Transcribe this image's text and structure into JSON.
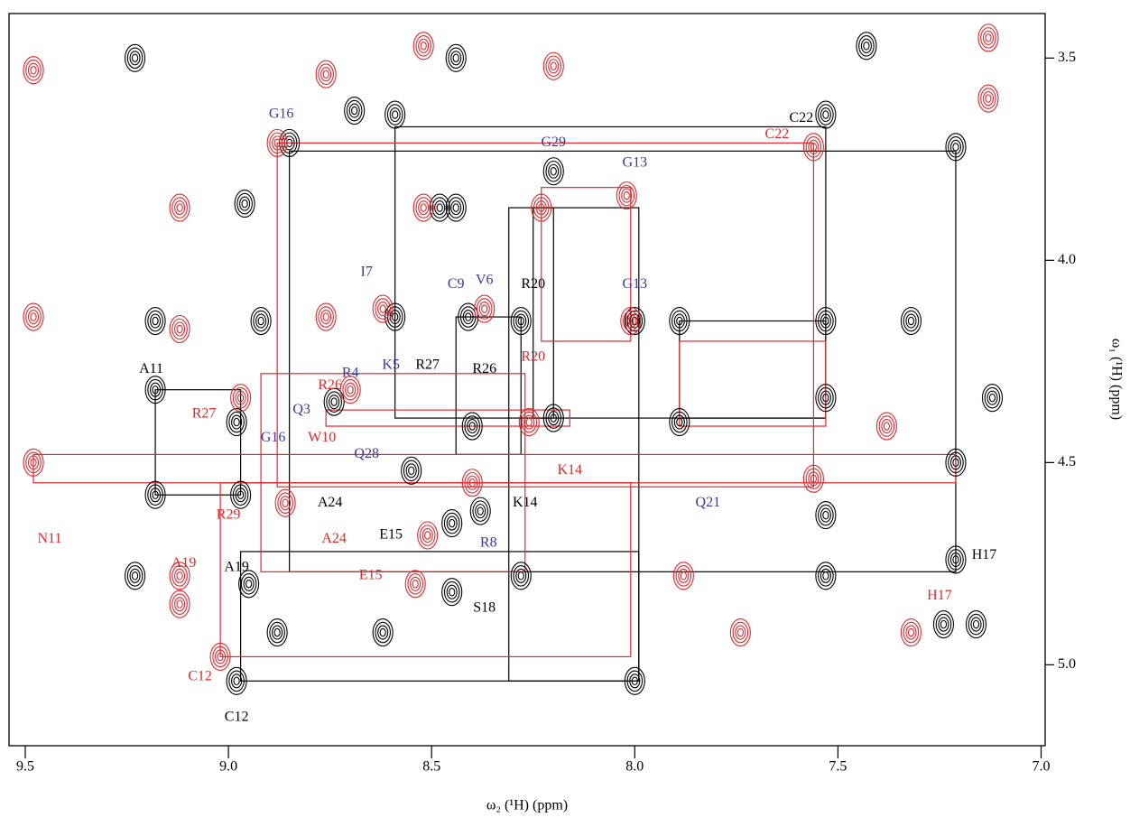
{
  "chart_data": {
    "type": "contour",
    "x_label": "ω₂ (¹H) (ppm)",
    "y_label": "ω₁ (¹H) (ppm)",
    "xlim": [
      9.54,
      6.99
    ],
    "ylim": [
      3.39,
      5.2
    ],
    "xticks": [
      9.5,
      {
        "value": 9,
        "label": "9.0"
      },
      8.5,
      {
        "value": 8,
        "label": "8.0"
      },
      7.5,
      {
        "value": 7,
        "label": "7.0"
      }
    ],
    "yticks": [
      3.5,
      {
        "value": 4,
        "label": "4.0"
      },
      4.5,
      {
        "value": 5,
        "label": "5.0"
      }
    ],
    "series": [
      {
        "color": "#000000",
        "x": [
          9.23,
          9.18,
          9.18,
          9.18,
          9.23,
          8.98,
          8.97,
          8.98,
          8.92,
          8.96,
          8.85,
          8.95,
          8.69,
          8.59,
          8.44,
          8.44,
          8.41,
          8.59,
          8.4,
          8.38,
          8.45,
          8.45,
          8.28,
          8.2,
          8.2,
          8.0,
          8.0,
          7.89,
          7.89,
          7.53,
          7.53,
          7.53,
          7.53,
          7.53,
          7.21,
          7.21,
          7.21,
          7.24,
          7.16,
          7.43,
          7.12,
          7.32,
          8.48,
          8.28,
          8.62,
          8.74,
          8.55,
          8.88
        ],
        "values": [
          3.5,
          4.15,
          4.32,
          4.58,
          4.78,
          4.4,
          4.58,
          5.04,
          4.15,
          3.86,
          3.71,
          4.8,
          3.63,
          3.64,
          3.5,
          3.87,
          4.14,
          4.14,
          4.41,
          4.62,
          4.65,
          4.82,
          4.15,
          3.78,
          4.39,
          4.15,
          5.04,
          4.15,
          4.4,
          3.64,
          4.15,
          4.34,
          4.63,
          4.78,
          3.72,
          4.5,
          4.74,
          4.9,
          4.9,
          3.47,
          4.34,
          4.15,
          3.87,
          4.78,
          4.92,
          4.35,
          4.52,
          4.92
        ]
      },
      {
        "color": "#e8262a",
        "x": [
          9.48,
          9.48,
          9.48,
          9.12,
          9.12,
          9.12,
          8.97,
          8.88,
          8.76,
          8.76,
          8.7,
          8.52,
          8.52,
          8.62,
          8.37,
          8.51,
          8.54,
          8.23,
          8.26,
          8.02,
          8.01,
          7.88,
          7.74,
          7.56,
          7.56,
          7.32,
          7.13,
          7.38,
          9.02,
          8.86,
          8.4,
          7.13,
          9.12,
          8.2
        ],
        "values": [
          3.53,
          4.14,
          4.5,
          4.17,
          4.78,
          3.87,
          4.34,
          3.71,
          3.54,
          4.14,
          4.32,
          3.47,
          3.87,
          4.12,
          4.12,
          4.68,
          4.8,
          3.87,
          4.4,
          3.84,
          4.15,
          4.78,
          4.92,
          3.72,
          4.54,
          4.92,
          3.45,
          4.41,
          4.98,
          4.6,
          4.55,
          3.6,
          4.85,
          3.52
        ]
      }
    ],
    "links": [
      {
        "color": "#000000",
        "rects": [
          [
            8.85,
            3.73,
            7.21,
            4.77
          ],
          [
            8.59,
            3.67,
            7.53,
            4.39
          ],
          [
            9.18,
            4.32,
            8.97,
            4.58
          ],
          [
            8.31,
            3.87,
            7.99,
            5.04
          ],
          [
            8.97,
            4.72,
            7.99,
            5.04
          ],
          [
            7.89,
            4.15,
            7.53,
            4.39
          ],
          [
            8.44,
            4.14,
            8.28,
            4.48
          ],
          [
            8.25,
            3.87,
            8.2,
            4.39
          ]
        ]
      },
      {
        "color": "#e8262a",
        "rects": [
          [
            8.88,
            3.71,
            7.56,
            4.56
          ],
          [
            9.48,
            4.48,
            7.21,
            4.55
          ],
          [
            8.92,
            4.28,
            8.27,
            4.77
          ],
          [
            9.02,
            4.55,
            8.01,
            4.98
          ],
          [
            8.23,
            3.82,
            8.01,
            4.2
          ],
          [
            7.89,
            4.2,
            7.53,
            4.41
          ],
          [
            8.76,
            4.37,
            8.16,
            4.41
          ]
        ]
      }
    ],
    "annotations": [
      {
        "text": "G16",
        "x": 8.87,
        "y": 3.64,
        "color": "#3a3a9a"
      },
      {
        "text": "C22",
        "x": 7.59,
        "y": 3.65,
        "color": "#000000"
      },
      {
        "text": "C22",
        "x": 7.65,
        "y": 3.69,
        "color": "#e8262a"
      },
      {
        "text": "G29",
        "x": 8.2,
        "y": 3.71,
        "color": "#3a3a9a"
      },
      {
        "text": "G13",
        "x": 8.0,
        "y": 3.76,
        "color": "#3a3a9a"
      },
      {
        "text": "I7",
        "x": 8.66,
        "y": 4.03,
        "color": "#3a3a9a"
      },
      {
        "text": "C9",
        "x": 8.44,
        "y": 4.06,
        "color": "#3a3a9a"
      },
      {
        "text": "V6",
        "x": 8.37,
        "y": 4.05,
        "color": "#3a3a9a"
      },
      {
        "text": "R20",
        "x": 8.25,
        "y": 4.06,
        "color": "#000000"
      },
      {
        "text": "G13",
        "x": 8.0,
        "y": 4.06,
        "color": "#3a3a9a"
      },
      {
        "text": "R20",
        "x": 8.25,
        "y": 4.24,
        "color": "#e8262a"
      },
      {
        "text": "A11",
        "x": 9.19,
        "y": 4.27,
        "color": "#000000"
      },
      {
        "text": "R4",
        "x": 8.7,
        "y": 4.28,
        "color": "#3a3a9a"
      },
      {
        "text": "K5",
        "x": 8.6,
        "y": 4.26,
        "color": "#3a3a9a"
      },
      {
        "text": "R27",
        "x": 8.51,
        "y": 4.26,
        "color": "#000000"
      },
      {
        "text": "R26",
        "x": 8.75,
        "y": 4.31,
        "color": "#e8262a"
      },
      {
        "text": "R26",
        "x": 8.37,
        "y": 4.27,
        "color": "#000000"
      },
      {
        "text": "Q3",
        "x": 8.82,
        "y": 4.37,
        "color": "#3a3a9a"
      },
      {
        "text": "R27",
        "x": 9.06,
        "y": 4.38,
        "color": "#e8262a"
      },
      {
        "text": "G16",
        "x": 8.89,
        "y": 4.44,
        "color": "#3a3a9a"
      },
      {
        "text": "W10",
        "x": 8.77,
        "y": 4.44,
        "color": "#e8262a"
      },
      {
        "text": "Q28",
        "x": 8.66,
        "y": 4.48,
        "color": "#3a3a9a"
      },
      {
        "text": "Q21",
        "x": 7.82,
        "y": 4.6,
        "color": "#3a3a9a"
      },
      {
        "text": "K14",
        "x": 8.16,
        "y": 4.52,
        "color": "#e8262a"
      },
      {
        "text": "A24",
        "x": 8.75,
        "y": 4.6,
        "color": "#000000"
      },
      {
        "text": "K14",
        "x": 8.27,
        "y": 4.6,
        "color": "#000000"
      },
      {
        "text": "R29",
        "x": 9.0,
        "y": 4.63,
        "color": "#e8262a"
      },
      {
        "text": "N11",
        "x": 9.44,
        "y": 4.69,
        "color": "#e8262a"
      },
      {
        "text": "A24",
        "x": 8.74,
        "y": 4.69,
        "color": "#e8262a"
      },
      {
        "text": "E15",
        "x": 8.6,
        "y": 4.68,
        "color": "#000000"
      },
      {
        "text": "R8",
        "x": 8.36,
        "y": 4.7,
        "color": "#3a3a9a"
      },
      {
        "text": "E15",
        "x": 8.65,
        "y": 4.78,
        "color": "#e8262a"
      },
      {
        "text": "A19",
        "x": 9.11,
        "y": 4.75,
        "color": "#e8262a"
      },
      {
        "text": "H17",
        "x": 7.14,
        "y": 4.73,
        "color": "#000000"
      },
      {
        "text": "A19",
        "x": 8.98,
        "y": 4.76,
        "color": "#000000"
      },
      {
        "text": "S18",
        "x": 8.37,
        "y": 4.86,
        "color": "#000000"
      },
      {
        "text": "C12",
        "x": 9.07,
        "y": 5.03,
        "color": "#e8262a"
      },
      {
        "text": "C12",
        "x": 8.98,
        "y": 5.13,
        "color": "#000000"
      },
      {
        "text": "H17",
        "x": 7.25,
        "y": 4.83,
        "color": "#e8262a"
      }
    ]
  }
}
